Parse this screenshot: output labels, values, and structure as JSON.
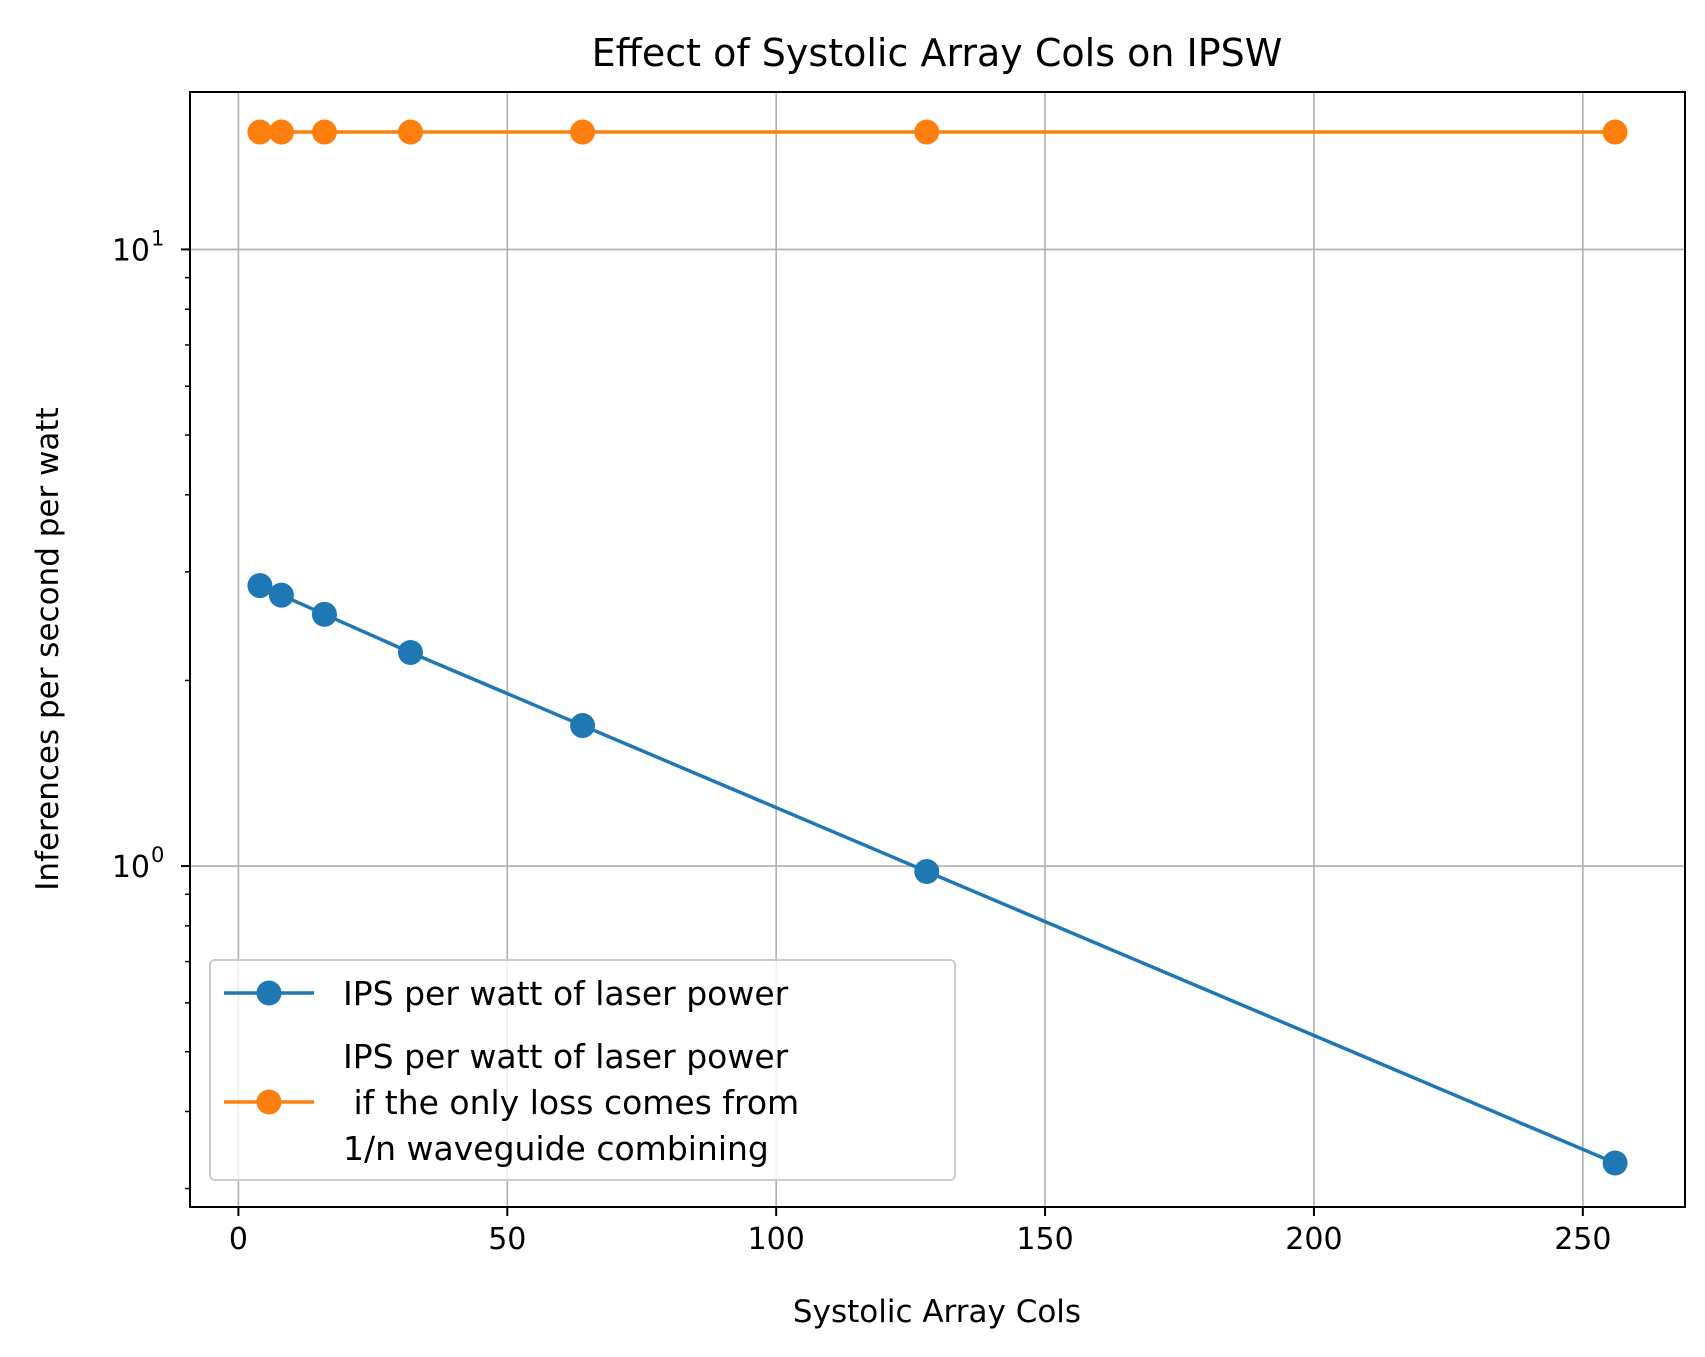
{
  "chart_data": {
    "type": "line",
    "title": "Effect of Systolic Array Cols on IPSW",
    "xlabel": "Systolic Array Cols",
    "ylabel": "Inferences per second per watt",
    "xlim": [
      -9,
      269
    ],
    "ylim": [
      0.28,
      18
    ],
    "yscale": "log",
    "grid": true,
    "legend_position": "lower-left",
    "x_ticks": [
      {
        "value": 0,
        "label": "0"
      },
      {
        "value": 50,
        "label": "50"
      },
      {
        "value": 100,
        "label": "100"
      },
      {
        "value": 150,
        "label": "150"
      },
      {
        "value": 200,
        "label": "200"
      },
      {
        "value": 250,
        "label": "250"
      }
    ],
    "y_ticks": [
      {
        "value": 1,
        "base": "10",
        "exp": "0"
      },
      {
        "value": 10,
        "base": "10",
        "exp": "1"
      }
    ],
    "series": [
      {
        "name": "IPS per watt of laser power",
        "color": "#1f77b4",
        "x": [
          4,
          8,
          16,
          32,
          64,
          128,
          256
        ],
        "y": [
          2.85,
          2.75,
          2.56,
          2.22,
          1.69,
          0.98,
          0.33
        ]
      },
      {
        "name": "IPS per watt of laser power\n if the only loss comes from\n1/n waveguide combining",
        "color": "#ff7f0e",
        "x": [
          4,
          8,
          16,
          32,
          64,
          128,
          256
        ],
        "y": [
          15.5,
          15.5,
          15.5,
          15.5,
          15.5,
          15.5,
          15.5
        ]
      }
    ]
  }
}
